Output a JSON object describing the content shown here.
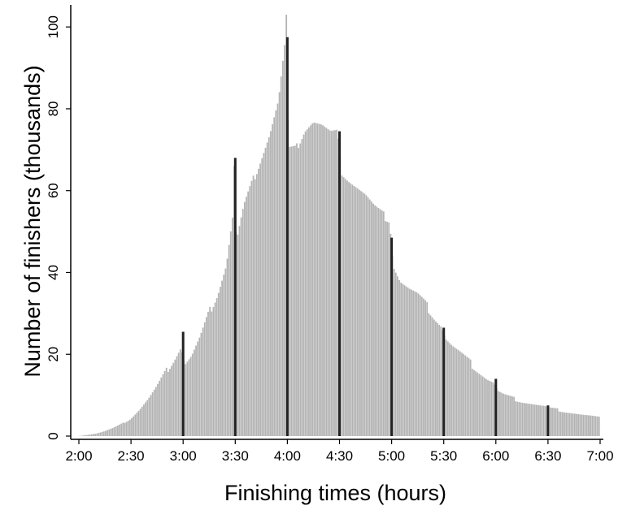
{
  "chart_data": {
    "type": "bar",
    "xlabel": "Finishing times (hours)",
    "ylabel": "Number of finishers (thousands)",
    "x_unit": "minutes",
    "x_ticks": [
      {
        "value": 120,
        "label": "2:00"
      },
      {
        "value": 150,
        "label": "2:30"
      },
      {
        "value": 180,
        "label": "3:00"
      },
      {
        "value": 210,
        "label": "3:30"
      },
      {
        "value": 240,
        "label": "4:00"
      },
      {
        "value": 270,
        "label": "4:30"
      },
      {
        "value": 300,
        "label": "5:00"
      },
      {
        "value": 330,
        "label": "5:30"
      },
      {
        "value": 360,
        "label": "6:00"
      },
      {
        "value": 390,
        "label": "6:30"
      },
      {
        "value": 420,
        "label": "7:00"
      }
    ],
    "y_ticks": [
      0,
      20,
      40,
      60,
      80,
      100
    ],
    "xlim": [
      120,
      420
    ],
    "ylim": [
      0,
      105
    ],
    "grid": false,
    "bar_color": "#b3b3b3",
    "highlight_color": "#222222",
    "series_profile": [
      [
        120,
        0
      ],
      [
        125,
        0.3
      ],
      [
        130,
        0.6
      ],
      [
        135,
        1.2
      ],
      [
        140,
        2.0
      ],
      [
        145,
        3.0
      ],
      [
        150,
        4.3
      ],
      [
        155,
        6.5
      ],
      [
        160,
        9.0
      ],
      [
        165,
        12.0
      ],
      [
        170,
        15.5
      ],
      [
        175,
        19.0
      ],
      [
        179,
        22.0
      ],
      [
        181,
        17.5
      ],
      [
        185,
        19.5
      ],
      [
        190,
        24.0
      ],
      [
        195,
        30.0
      ],
      [
        200,
        35.0
      ],
      [
        205,
        42.0
      ],
      [
        209,
        55.0
      ],
      [
        211,
        48.0
      ],
      [
        215,
        56.0
      ],
      [
        220,
        62.0
      ],
      [
        225,
        68.0
      ],
      [
        230,
        74.0
      ],
      [
        235,
        82.0
      ],
      [
        239,
        97.0
      ],
      [
        241,
        70.0
      ],
      [
        245,
        70.0
      ],
      [
        250,
        75.0
      ],
      [
        255,
        77.0
      ],
      [
        260,
        76.0
      ],
      [
        265,
        74.0
      ],
      [
        269,
        74.0
      ],
      [
        271,
        65.0
      ],
      [
        275,
        63.0
      ],
      [
        280,
        61.0
      ],
      [
        285,
        59.0
      ],
      [
        290,
        56.0
      ],
      [
        295,
        54.0
      ],
      [
        299,
        53.0
      ],
      [
        301,
        42.0
      ],
      [
        305,
        38.0
      ],
      [
        310,
        36.0
      ],
      [
        315,
        34.5
      ],
      [
        320,
        32.0
      ],
      [
        325,
        29.0
      ],
      [
        329,
        27.0
      ],
      [
        331,
        24.0
      ],
      [
        335,
        22.0
      ],
      [
        340,
        20.0
      ],
      [
        345,
        18.0
      ],
      [
        350,
        16.0
      ],
      [
        355,
        14.0
      ],
      [
        359,
        13.0
      ],
      [
        361,
        11.0
      ],
      [
        365,
        10.0
      ],
      [
        370,
        9.2
      ],
      [
        375,
        8.5
      ],
      [
        380,
        8.0
      ],
      [
        385,
        7.5
      ],
      [
        389,
        7.2
      ],
      [
        391,
        6.8
      ],
      [
        395,
        6.5
      ],
      [
        400,
        6.0
      ],
      [
        405,
        5.6
      ],
      [
        410,
        5.2
      ],
      [
        415,
        4.9
      ],
      [
        420,
        4.5
      ]
    ],
    "highlight_bars": [
      {
        "x": 180,
        "y": 25.5
      },
      {
        "x": 210,
        "y": 68.0
      },
      {
        "x": 240,
        "y": 97.5
      },
      {
        "x": 270,
        "y": 74.5
      },
      {
        "x": 300,
        "y": 48.5
      },
      {
        "x": 330,
        "y": 26.5
      },
      {
        "x": 360,
        "y": 14.0
      },
      {
        "x": 390,
        "y": 7.5
      }
    ],
    "spikes": [
      {
        "x": 239,
        "y": 103.0
      },
      {
        "x": 209,
        "y": 66.0
      }
    ]
  }
}
